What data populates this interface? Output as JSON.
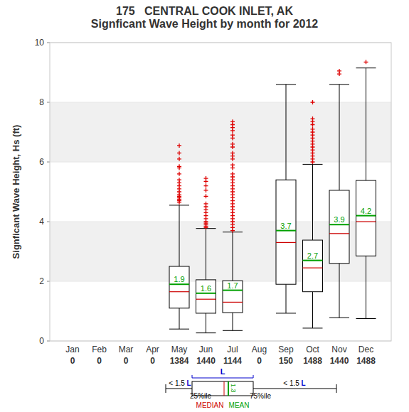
{
  "chart_data": {
    "type": "box",
    "title": "175   CENTRAL COOK INLET, AK",
    "subtitle": "Signficant Wave Height by month for 2012",
    "y_label": "Signficant Wave Height, Hs (ft)",
    "categories": [
      "Jan",
      "Feb",
      "Mar",
      "Apr",
      "May",
      "Jun",
      "Jul",
      "Aug",
      "Sep",
      "Oct",
      "Nov",
      "Dec"
    ],
    "counts": [
      0,
      0,
      0,
      0,
      1384,
      1440,
      1144,
      0,
      150,
      1488,
      1440,
      1488
    ],
    "whisker_low": [
      null,
      null,
      null,
      null,
      0.4,
      0.27,
      0.35,
      null,
      0.93,
      0.43,
      0.78,
      0.75
    ],
    "q1": [
      null,
      null,
      null,
      null,
      1.1,
      0.93,
      0.95,
      null,
      1.9,
      1.65,
      2.6,
      2.85
    ],
    "median": [
      null,
      null,
      null,
      null,
      1.65,
      1.4,
      1.3,
      null,
      3.3,
      2.45,
      3.6,
      4.0
    ],
    "mean": [
      null,
      null,
      null,
      null,
      1.9,
      1.6,
      1.7,
      null,
      3.7,
      2.7,
      3.9,
      4.2
    ],
    "q3": [
      null,
      null,
      null,
      null,
      2.5,
      2.05,
      2.02,
      null,
      5.4,
      3.38,
      5.05,
      5.38
    ],
    "whisker_high": [
      null,
      null,
      null,
      null,
      4.55,
      3.77,
      3.65,
      null,
      8.6,
      5.92,
      8.6,
      9.15
    ],
    "outliers": [
      [],
      [],
      [],
      [],
      [
        6.55,
        6.3,
        6.1,
        5.85,
        5.8,
        5.6,
        5.4,
        5.3,
        5.2,
        5.1,
        5.0,
        4.9,
        4.85,
        4.8,
        4.75,
        4.7,
        4.65
      ],
      [
        5.45,
        5.35,
        5.2,
        5.05,
        4.85,
        4.6,
        4.5,
        4.4,
        4.3,
        4.2,
        4.1,
        4.0,
        3.95,
        3.9,
        3.85,
        3.8
      ],
      [
        7.35,
        7.25,
        7.15,
        7.05,
        6.9,
        6.8,
        6.6,
        6.5,
        6.3,
        6.2,
        6.1,
        5.9,
        5.8,
        5.6,
        5.5,
        5.4,
        5.3,
        5.2,
        5.1,
        5.0,
        4.9,
        4.8,
        4.7,
        4.6,
        4.5,
        4.4,
        4.3,
        4.2,
        4.1,
        4.0,
        3.9,
        3.8,
        3.7
      ],
      [],
      [],
      [
        8.0,
        7.45,
        7.35,
        7.25,
        7.1,
        7.0,
        6.9,
        6.8,
        6.7,
        6.6,
        6.5,
        6.4,
        6.3,
        6.2,
        6.1,
        6.0
      ],
      [
        9.05,
        8.95
      ],
      [
        9.35
      ]
    ],
    "ylim": [
      0,
      10
    ],
    "yticks": [
      0,
      2,
      4,
      6,
      8,
      10
    ],
    "grid": true,
    "data_labels": true,
    "color": "#000000",
    "key": {
      "box_label": "L",
      "whisker_label": "< 1.5 L",
      "q1_label": "25%ile",
      "q3_label": "75%ile",
      "median_label": "MEDIAN",
      "mean_label": "MEAN",
      "mean_value": "1.3"
    }
  }
}
